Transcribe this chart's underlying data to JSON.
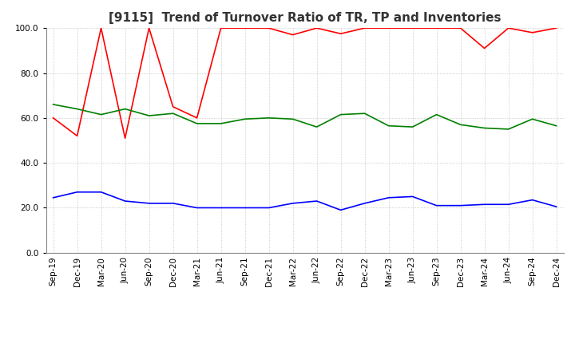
{
  "title": "[9115]  Trend of Turnover Ratio of TR, TP and Inventories",
  "ylim": [
    0.0,
    100.0
  ],
  "yticks": [
    0.0,
    20.0,
    40.0,
    60.0,
    80.0,
    100.0
  ],
  "x_labels": [
    "Sep-19",
    "Dec-19",
    "Mar-20",
    "Jun-20",
    "Sep-20",
    "Dec-20",
    "Mar-21",
    "Jun-21",
    "Sep-21",
    "Dec-21",
    "Mar-22",
    "Jun-22",
    "Sep-22",
    "Dec-22",
    "Mar-23",
    "Jun-23",
    "Sep-23",
    "Dec-23",
    "Mar-24",
    "Jun-24",
    "Sep-24",
    "Dec-24"
  ],
  "trade_receivables": [
    60.0,
    52.0,
    100.0,
    51.0,
    100.0,
    65.0,
    60.0,
    100.0,
    100.0,
    100.0,
    97.0,
    100.0,
    97.5,
    100.0,
    100.0,
    100.0,
    100.0,
    100.0,
    91.0,
    100.0,
    98.0,
    100.0
  ],
  "trade_payables": [
    24.5,
    27.0,
    27.0,
    23.0,
    22.0,
    22.0,
    20.0,
    20.0,
    20.0,
    20.0,
    22.0,
    23.0,
    19.0,
    22.0,
    24.5,
    25.0,
    21.0,
    21.0,
    21.5,
    21.5,
    23.5,
    20.5
  ],
  "inventories": [
    66.0,
    64.0,
    61.5,
    64.0,
    61.0,
    62.0,
    57.5,
    57.5,
    59.5,
    60.0,
    59.5,
    56.0,
    61.5,
    62.0,
    56.5,
    56.0,
    61.5,
    57.0,
    55.5,
    55.0,
    59.5,
    56.5
  ],
  "tr_color": "#FF0000",
  "tp_color": "#0000FF",
  "inv_color": "#008000",
  "background_color": "#FFFFFF",
  "grid_color": "#BBBBBB",
  "title_fontsize": 11,
  "axis_fontsize": 7.5,
  "legend_fontsize": 9
}
